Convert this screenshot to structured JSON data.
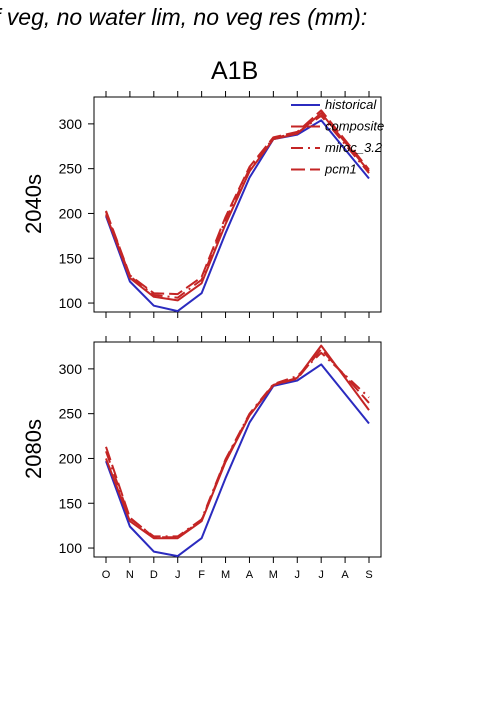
{
  "figure": {
    "title": "f veg, no water lim, no veg res (mm):",
    "scenario": "A1B"
  },
  "colors": {
    "historical": "#2b2bbf",
    "future": "#c42525",
    "frame": "#000000"
  },
  "chart_data": [
    {
      "type": "line",
      "panel_label": "2040s",
      "x": [
        "O",
        "N",
        "D",
        "J",
        "F",
        "M",
        "A",
        "M",
        "J",
        "J",
        "A",
        "S"
      ],
      "ylim": [
        90,
        330
      ],
      "yticks": [
        100,
        150,
        200,
        250,
        300
      ],
      "legend": {
        "placement": "top-right",
        "entries": [
          "historical",
          "composite",
          "miroc_3.2",
          "pcm1"
        ]
      },
      "series": [
        {
          "name": "historical",
          "style": "solid",
          "color_key": "historical",
          "values": [
            197,
            124,
            97,
            91,
            111,
            178,
            240,
            283,
            288,
            304,
            null,
            239
          ]
        },
        {
          "name": "composite",
          "style": "solid",
          "color_key": "future",
          "values": [
            199,
            128,
            107,
            103,
            122,
            188,
            247,
            283,
            289,
            312,
            null,
            247
          ]
        },
        {
          "name": "miroc_3.2",
          "style": "dashdot",
          "color_key": "future",
          "values": [
            202,
            130,
            109,
            106,
            126,
            193,
            250,
            284,
            290,
            309,
            null,
            245
          ]
        },
        {
          "name": "pcm1",
          "style": "dash",
          "color_key": "future",
          "values": [
            203,
            131,
            111,
            110,
            129,
            196,
            252,
            285,
            291,
            315,
            null,
            249
          ]
        }
      ]
    },
    {
      "type": "line",
      "panel_label": "2080s",
      "x": [
        "O",
        "N",
        "D",
        "J",
        "F",
        "M",
        "A",
        "M",
        "J",
        "J",
        "A",
        "S"
      ],
      "ylim": [
        90,
        330
      ],
      "yticks": [
        100,
        150,
        200,
        250,
        300
      ],
      "series": [
        {
          "name": "historical",
          "style": "solid",
          "color_key": "historical",
          "values": [
            197,
            124,
            96,
            91,
            111,
            178,
            240,
            281,
            287,
            305,
            null,
            239
          ]
        },
        {
          "name": "composite",
          "style": "solid",
          "color_key": "future",
          "values": [
            200,
            130,
            111,
            111,
            130,
            196,
            248,
            282,
            290,
            326,
            null,
            254
          ]
        },
        {
          "name": "miroc_3.2",
          "style": "dashdot",
          "color_key": "future",
          "values": [
            208,
            133,
            113,
            113,
            132,
            199,
            250,
            283,
            292,
            318,
            null,
            268
          ]
        },
        {
          "name": "pcm1",
          "style": "dash",
          "color_key": "future",
          "values": [
            213,
            134,
            112,
            112,
            131,
            198,
            249,
            282,
            289,
            322,
            null,
            262
          ]
        }
      ]
    }
  ]
}
